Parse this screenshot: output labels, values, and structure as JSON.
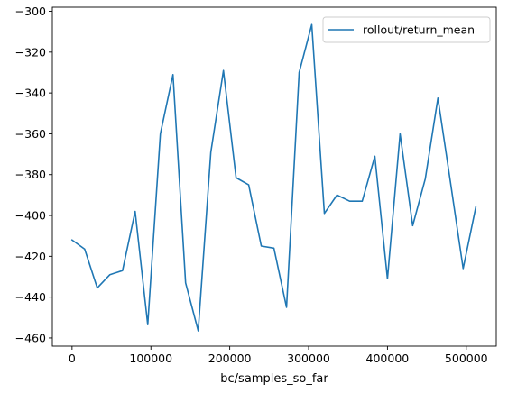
{
  "chart_data": {
    "type": "line",
    "title": "",
    "xlabel": "bc/samples_so_far",
    "ylabel": "",
    "xlim": [
      -25000,
      538000
    ],
    "ylim": [
      -464,
      -298
    ],
    "xticks": [
      0,
      100000,
      200000,
      300000,
      400000,
      500000
    ],
    "xtick_labels": [
      "0",
      "100000",
      "200000",
      "300000",
      "400000",
      "500000"
    ],
    "yticks": [
      -460,
      -440,
      -420,
      -400,
      -380,
      -360,
      -340,
      -320,
      -300
    ],
    "ytick_labels": [
      "−460",
      "−440",
      "−420",
      "−400",
      "−380",
      "−360",
      "−340",
      "−320",
      "−300"
    ],
    "grid": false,
    "legend_position": "top-right",
    "series": [
      {
        "name": "rollout/return_mean",
        "color": "#1f77b4",
        "x": [
          0,
          16000,
          32000,
          48000,
          64000,
          80000,
          96000,
          112000,
          128000,
          144000,
          160000,
          176000,
          192000,
          208000,
          224000,
          240000,
          256000,
          272000,
          288000,
          304000,
          320000,
          336000,
          352000,
          368000,
          384000,
          400000,
          416000,
          432000,
          448000,
          464000,
          480000,
          496000,
          512000
        ],
        "y": [
          -412,
          -416.5,
          -435.5,
          -429,
          -427,
          -398,
          -453.5,
          -360,
          -331,
          -433,
          -456.5,
          -369,
          -329,
          -381.5,
          -385,
          -415,
          -416,
          -445,
          -330,
          -306.5,
          -399,
          -390,
          -393,
          -393,
          -371,
          -431,
          -360,
          -405,
          -382,
          -342.5,
          -384,
          -426,
          -396
        ]
      }
    ]
  }
}
